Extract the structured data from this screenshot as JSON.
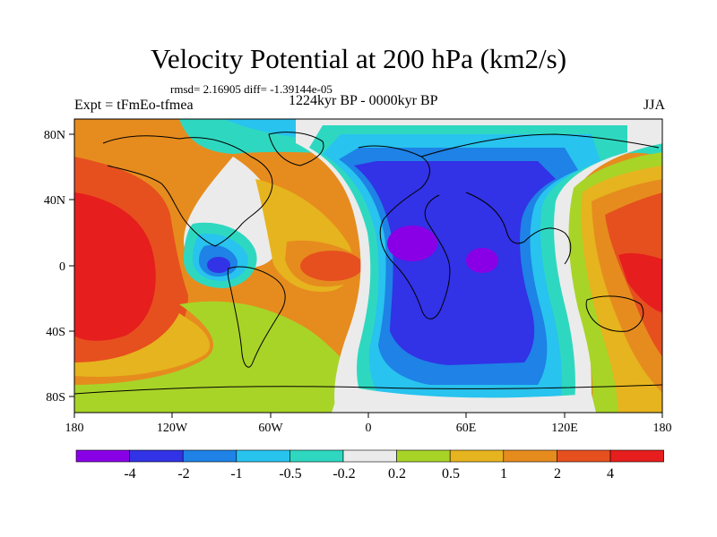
{
  "title": "Velocity Potential at 200 hPa (km2/s)",
  "stats": "rmsd= 2.16905 diff= -1.39144e-05",
  "experiment": "Expt = tFmEo-tfmea",
  "period": "1224kyr BP - 0000kyr BP",
  "season": "JJA",
  "axes": {
    "lat_ticks": [
      "80N",
      "40N",
      "0",
      "40S",
      "80S"
    ],
    "lon_ticks": [
      "180",
      "120W",
      "60W",
      "0",
      "60E",
      "120E",
      "180"
    ]
  },
  "colorbar": {
    "colors": [
      "#8a00e6",
      "#3232e6",
      "#1e82e6",
      "#28c3ee",
      "#2ed8c0",
      "#ebebeb",
      "#a8d428",
      "#e6b41e",
      "#e68c1e",
      "#e6501e",
      "#e61e1e"
    ],
    "labels": [
      "-4",
      "-2",
      "-1",
      "-0.5",
      "-0.2",
      "0.2",
      "0.5",
      "1",
      "2",
      "4"
    ]
  },
  "palette": {
    "purple": "#8a00e6",
    "blue": "#3232e6",
    "mid_blue": "#1e82e6",
    "light_blue": "#28c3ee",
    "cyan": "#2ed8c0",
    "white": "#ebebeb",
    "lime": "#a8d428",
    "gold": "#e6b41e",
    "orange": "#e68c1e",
    "red_orange": "#e6501e",
    "red": "#e61e1e"
  }
}
